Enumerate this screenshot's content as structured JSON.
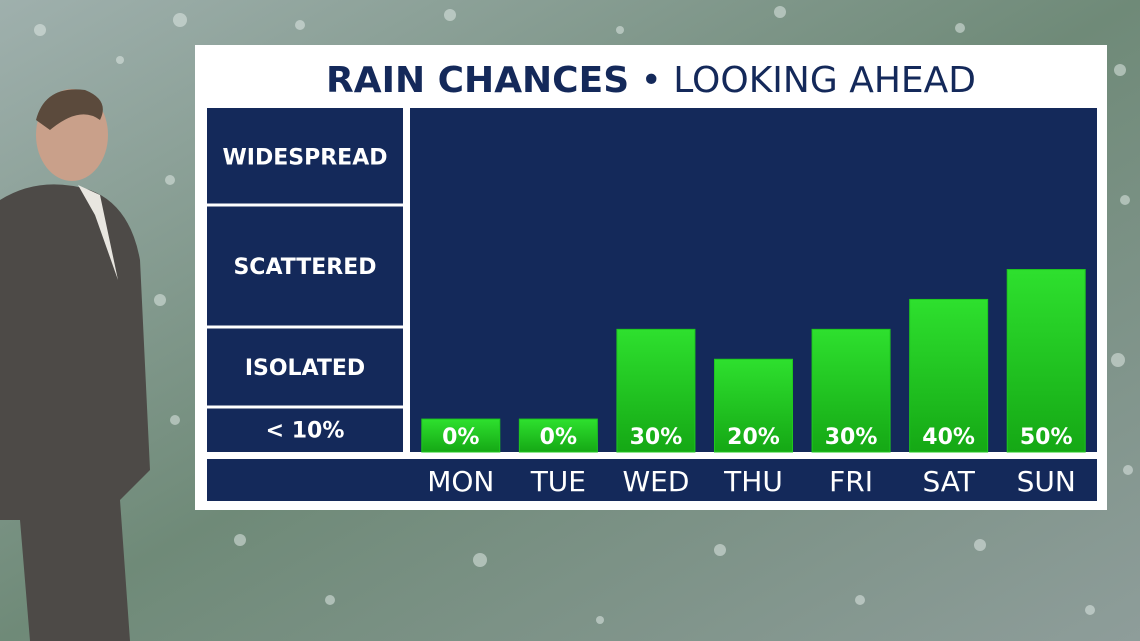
{
  "chart_data": {
    "type": "bar",
    "title": "RAIN CHANCES",
    "subtitle": "LOOKING AHEAD",
    "categories": [
      "MON",
      "TUE",
      "WED",
      "THU",
      "FRI",
      "SAT",
      "SUN"
    ],
    "values": [
      0,
      0,
      30,
      20,
      30,
      40,
      50
    ],
    "value_labels": [
      "0%",
      "0%",
      "30%",
      "20%",
      "30%",
      "40%",
      "50%"
    ],
    "color": "#1fc81f",
    "y_bands": [
      "< 10%",
      "ISOLATED",
      "SCATTERED",
      "WIDESPREAD"
    ],
    "ylim": [
      -11,
      104
    ]
  }
}
